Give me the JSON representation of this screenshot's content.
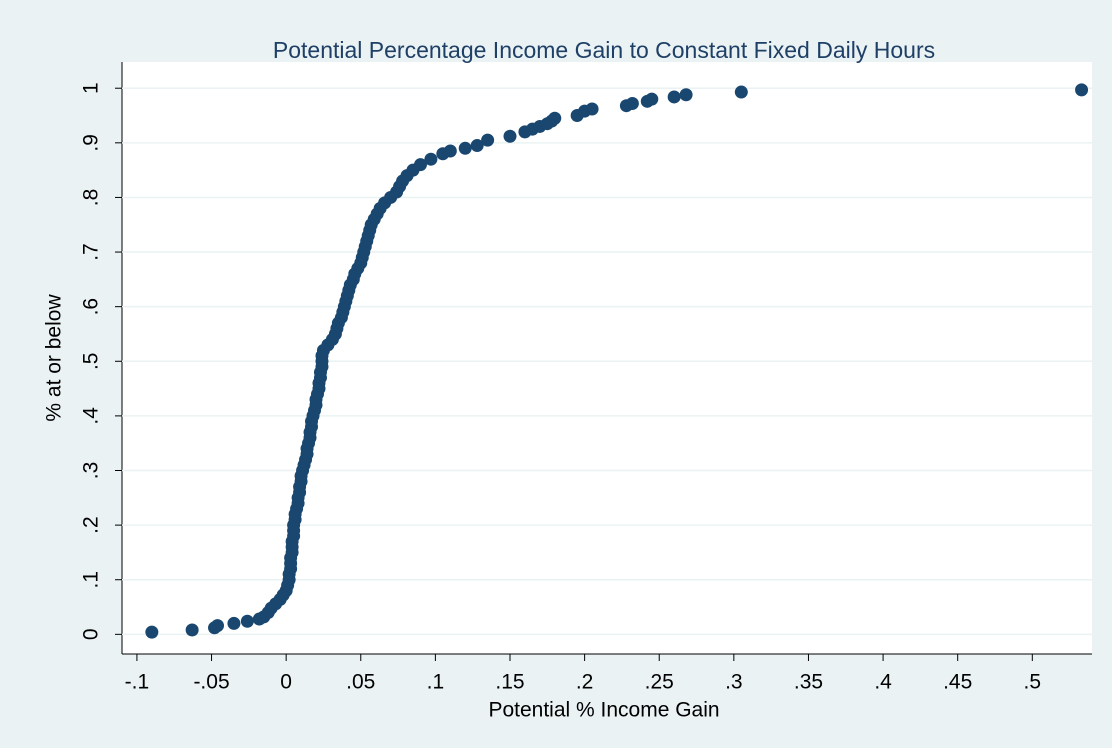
{
  "chart_data": {
    "type": "scatter",
    "title": "Potential Percentage Income Gain to Constant Fixed Daily Hours",
    "x_label": "Potential % Income Gain",
    "y_label": "% at or below",
    "color": "#1a476f",
    "grid": true,
    "xlim": [
      -0.11,
      0.54
    ],
    "ylim": [
      -0.036,
      1.048
    ],
    "xticks": [
      {
        "value": -0.1,
        "label": "-.1"
      },
      {
        "value": -0.05,
        "label": "-.05"
      },
      0,
      {
        "value": 0.05,
        "label": ".05"
      },
      {
        "value": 0.1,
        "label": ".1"
      },
      {
        "value": 0.15,
        "label": ".15"
      },
      {
        "value": 0.2,
        "label": ".2"
      },
      {
        "value": 0.25,
        "label": ".25"
      },
      {
        "value": 0.3,
        "label": ".3"
      },
      {
        "value": 0.35,
        "label": ".35"
      },
      {
        "value": 0.4,
        "label": ".4"
      },
      {
        "value": 0.45,
        "label": ".45"
      },
      {
        "value": 0.5,
        "label": ".5"
      }
    ],
    "yticks": [
      0,
      {
        "value": 0.1,
        "label": ".1"
      },
      {
        "value": 0.2,
        "label": ".2"
      },
      {
        "value": 0.3,
        "label": ".3"
      },
      {
        "value": 0.4,
        "label": ".4"
      },
      {
        "value": 0.5,
        "label": ".5"
      },
      {
        "value": 0.6,
        "label": ".6"
      },
      {
        "value": 0.7,
        "label": ".7"
      },
      {
        "value": 0.8,
        "label": ".8"
      },
      {
        "value": 0.9,
        "label": ".9"
      },
      1
    ],
    "x": [
      -0.09,
      -0.063,
      -0.048,
      -0.046,
      -0.035,
      -0.026,
      -0.018,
      -0.015,
      -0.012,
      -0.01,
      -0.007,
      -0.004,
      -0.002,
      0,
      0.001,
      0.002,
      0.002,
      0.003,
      0.003,
      0.003,
      0.004,
      0.004,
      0.004,
      0.005,
      0.005,
      0.005,
      0.006,
      0.006,
      0.007,
      0.008,
      0.008,
      0.009,
      0.009,
      0.01,
      0.01,
      0.011,
      0.012,
      0.013,
      0.014,
      0.014,
      0.015,
      0.016,
      0.016,
      0.017,
      0.017,
      0.018,
      0.019,
      0.02,
      0.02,
      0.021,
      0.022,
      0.022,
      0.023,
      0.023,
      0.024,
      0.024,
      0.024,
      0.025,
      0.028,
      0.031,
      0.033,
      0.034,
      0.035,
      0.037,
      0.038,
      0.039,
      0.04,
      0.041,
      0.042,
      0.043,
      0.045,
      0.046,
      0.048,
      0.05,
      0.051,
      0.052,
      0.053,
      0.054,
      0.055,
      0.056,
      0.057,
      0.059,
      0.061,
      0.063,
      0.066,
      0.07,
      0.074,
      0.076,
      0.078,
      0.081,
      0.085,
      0.09,
      0.097,
      0.105,
      0.11,
      0.12,
      0.128,
      0.135,
      0.15,
      0.16,
      0.165,
      0.17,
      0.175,
      0.178,
      0.18,
      0.195,
      0.2,
      0.205,
      0.228,
      0.232,
      0.242,
      0.245,
      0.26,
      0.268,
      0.305,
      0.533
    ],
    "y": [
      0.004,
      0.008,
      0.012,
      0.016,
      0.02,
      0.024,
      0.028,
      0.032,
      0.04,
      0.048,
      0.056,
      0.064,
      0.072,
      0.08,
      0.09,
      0.1,
      0.11,
      0.12,
      0.13,
      0.14,
      0.15,
      0.16,
      0.17,
      0.18,
      0.19,
      0.2,
      0.21,
      0.22,
      0.23,
      0.24,
      0.25,
      0.26,
      0.27,
      0.28,
      0.29,
      0.3,
      0.31,
      0.32,
      0.33,
      0.34,
      0.35,
      0.36,
      0.37,
      0.38,
      0.39,
      0.4,
      0.41,
      0.42,
      0.43,
      0.44,
      0.45,
      0.46,
      0.47,
      0.48,
      0.49,
      0.5,
      0.51,
      0.52,
      0.53,
      0.54,
      0.55,
      0.56,
      0.57,
      0.58,
      0.59,
      0.6,
      0.61,
      0.62,
      0.63,
      0.64,
      0.65,
      0.66,
      0.67,
      0.68,
      0.69,
      0.7,
      0.71,
      0.72,
      0.73,
      0.74,
      0.75,
      0.76,
      0.77,
      0.78,
      0.79,
      0.8,
      0.81,
      0.82,
      0.83,
      0.84,
      0.85,
      0.86,
      0.87,
      0.88,
      0.885,
      0.89,
      0.895,
      0.905,
      0.912,
      0.92,
      0.925,
      0.93,
      0.935,
      0.94,
      0.945,
      0.95,
      0.958,
      0.962,
      0.968,
      0.972,
      0.976,
      0.98,
      0.984,
      0.988,
      0.993,
      0.997
    ]
  }
}
